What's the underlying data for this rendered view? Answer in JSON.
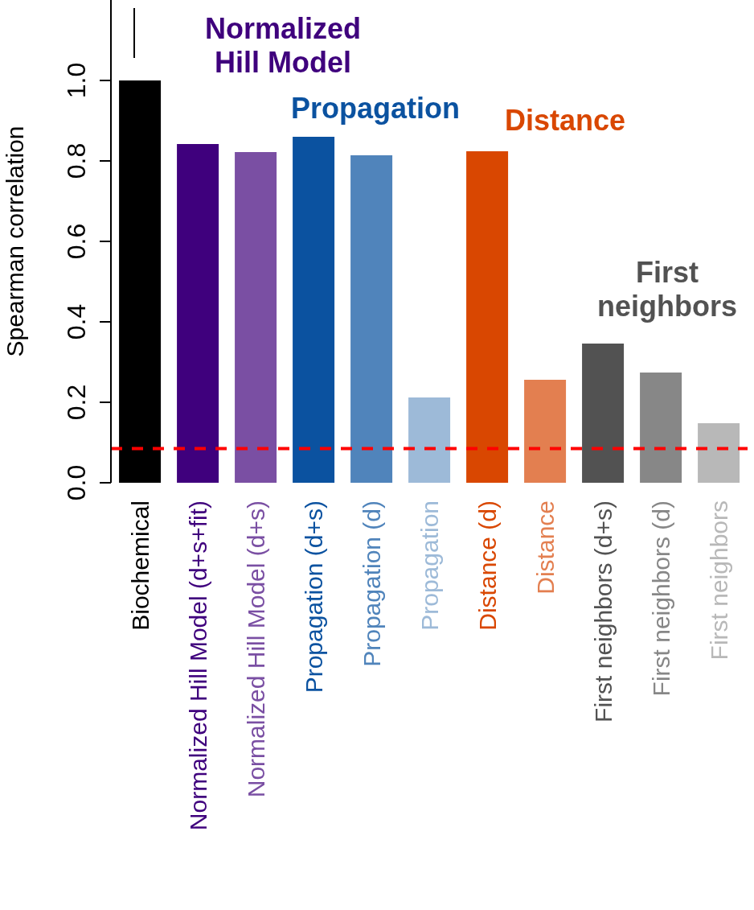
{
  "chart_data": {
    "type": "bar",
    "ylabel": "Spearman correlation",
    "categories": [
      "Biochemical",
      "Normalized Hill Model (d+s+fit)",
      "Normalized Hill Model (d+s)",
      "Propagation (d+s)",
      "Propagation (d)",
      "Propagation",
      "Distance (d)",
      "Distance",
      "First neighbors (d+s)",
      "First neighbors (d)",
      "First neighbors"
    ],
    "values": [
      1.0,
      0.842,
      0.822,
      0.86,
      0.814,
      0.212,
      0.824,
      0.256,
      0.346,
      0.274,
      0.148
    ],
    "colors": [
      "#000000",
      "#3f007d",
      "#7a4fa3",
      "#0b52a0",
      "#5084bb",
      "#9dbad8",
      "#d94701",
      "#e37f50",
      "#525252",
      "#878787",
      "#b8b8b8"
    ],
    "ylim": [
      0,
      1.2
    ],
    "yticks": [
      {
        "value": 0,
        "label": "0.0"
      },
      {
        "value": 0.2,
        "label": "0.2"
      },
      {
        "value": 0.4,
        "label": "0.4"
      },
      {
        "value": 0.6,
        "label": "0.6"
      },
      {
        "value": 0.8,
        "label": "0.8"
      },
      {
        "value": 1.0,
        "label": "1.0"
      }
    ],
    "grid": false,
    "ref_lines": [
      {
        "axis": "y",
        "value": 0.085,
        "color": "#ff0000",
        "line_style": "dashed"
      }
    ],
    "annotations": [
      "Normalized Hill Model",
      "Propagation",
      "Distance",
      "First neighbors"
    ]
  }
}
